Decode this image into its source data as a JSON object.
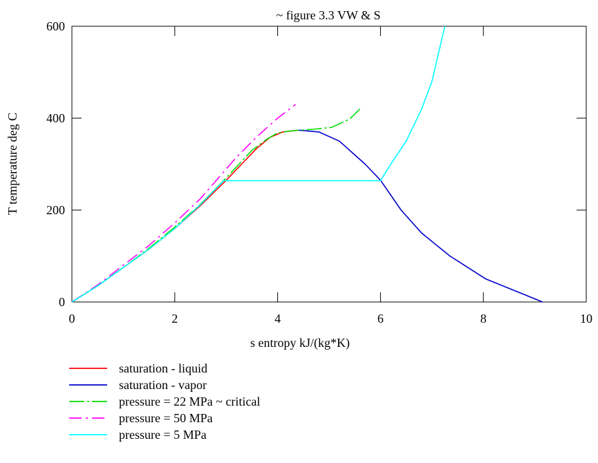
{
  "chart_data": {
    "type": "line",
    "title": "~ figure 3.3 VW & S",
    "xlabel": "s entropy kJ/(kg*K)",
    "ylabel": "T temperature deg C",
    "xlim": [
      0,
      10
    ],
    "ylim": [
      0,
      600
    ],
    "xticks": [
      0,
      2,
      4,
      6,
      8,
      10
    ],
    "yticks": [
      0,
      200,
      400,
      600
    ],
    "grid": false,
    "legend_position": "bottom-left, below plot",
    "series": [
      {
        "name": "saturation - liquid",
        "color": "#ff0000",
        "dash": "solid",
        "points": [
          [
            0,
            0
          ],
          [
            0.5,
            35
          ],
          [
            1.0,
            75
          ],
          [
            1.5,
            115
          ],
          [
            2.0,
            160
          ],
          [
            2.5,
            210
          ],
          [
            3.0,
            265
          ],
          [
            3.3,
            300
          ],
          [
            3.6,
            335
          ],
          [
            3.85,
            358
          ],
          [
            4.1,
            370
          ],
          [
            4.4,
            374
          ]
        ]
      },
      {
        "name": "saturation - vapor",
        "color": "#0000cc",
        "dash": "solid",
        "points": [
          [
            4.4,
            374
          ],
          [
            4.8,
            370
          ],
          [
            5.2,
            350
          ],
          [
            5.7,
            300
          ],
          [
            6.0,
            265
          ],
          [
            6.4,
            200
          ],
          [
            6.8,
            150
          ],
          [
            7.35,
            100
          ],
          [
            8.05,
            50
          ],
          [
            9.15,
            0
          ]
        ]
      },
      {
        "name": "pressure = 22 MPa ~ critical",
        "color": "#00dd00",
        "dash": "long-short",
        "points": [
          [
            0,
            0
          ],
          [
            0.5,
            35
          ],
          [
            1.0,
            75
          ],
          [
            1.5,
            117
          ],
          [
            2.0,
            163
          ],
          [
            2.5,
            213
          ],
          [
            3.0,
            270
          ],
          [
            3.5,
            330
          ],
          [
            3.8,
            355
          ],
          [
            4.0,
            368
          ],
          [
            4.3,
            373
          ],
          [
            4.7,
            376
          ],
          [
            5.05,
            380
          ],
          [
            5.4,
            398
          ],
          [
            5.6,
            420
          ]
        ]
      },
      {
        "name": "pressure = 50 MPa",
        "color": "#ff00ff",
        "dash": "dash-dot",
        "points": [
          [
            0,
            0
          ],
          [
            0.5,
            37
          ],
          [
            1.0,
            80
          ],
          [
            1.5,
            123
          ],
          [
            2.0,
            172
          ],
          [
            2.5,
            225
          ],
          [
            2.85,
            270
          ],
          [
            3.2,
            315
          ],
          [
            3.6,
            360
          ],
          [
            4.0,
            400
          ],
          [
            4.35,
            430
          ]
        ]
      },
      {
        "name": "pressure = 5 MPa",
        "color": "#00ffff",
        "dash": "solid",
        "points": [
          [
            0,
            0
          ],
          [
            0.5,
            35
          ],
          [
            1.0,
            75
          ],
          [
            1.5,
            115
          ],
          [
            2.0,
            160
          ],
          [
            2.5,
            212
          ],
          [
            2.95,
            264
          ],
          [
            6.0,
            264
          ],
          [
            6.2,
            300
          ],
          [
            6.5,
            350
          ],
          [
            6.8,
            420
          ],
          [
            7.0,
            480
          ],
          [
            7.25,
            600
          ]
        ]
      }
    ]
  }
}
